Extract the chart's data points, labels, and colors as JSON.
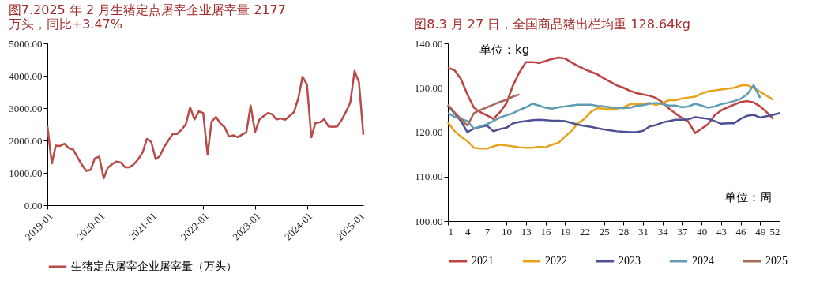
{
  "chart_data": [
    {
      "type": "line",
      "title": "图7.2025 年 2 月生猪定点屠宰企业屠宰量 2177 万头，同比+3.47%",
      "x": [
        "2019-01",
        "2019-02",
        "2019-03",
        "2019-04",
        "2019-05",
        "2019-06",
        "2019-07",
        "2019-08",
        "2019-09",
        "2019-10",
        "2019-11",
        "2019-12",
        "2020-01",
        "2020-02",
        "2020-03",
        "2020-04",
        "2020-05",
        "2020-06",
        "2020-07",
        "2020-08",
        "2020-09",
        "2020-10",
        "2020-11",
        "2020-12",
        "2021-01",
        "2021-02",
        "2021-03",
        "2021-04",
        "2021-05",
        "2021-06",
        "2021-07",
        "2021-08",
        "2021-09",
        "2021-10",
        "2021-11",
        "2021-12",
        "2022-01",
        "2022-02",
        "2022-03",
        "2022-04",
        "2022-05",
        "2022-06",
        "2022-07",
        "2022-08",
        "2022-09",
        "2022-10",
        "2022-11",
        "2022-12",
        "2023-01",
        "2023-02",
        "2023-03",
        "2023-04",
        "2023-05",
        "2023-06",
        "2023-07",
        "2023-08",
        "2023-09",
        "2023-10",
        "2023-11",
        "2023-12",
        "2024-01",
        "2024-02",
        "2024-03",
        "2024-04",
        "2024-05",
        "2024-06",
        "2024-07",
        "2024-08",
        "2024-09",
        "2024-10",
        "2024-11",
        "2024-12",
        "2025-01",
        "2025-02"
      ],
      "series": [
        {
          "name": "生猪定点屠宰企业屠宰量（万头）",
          "color": "#b94a48",
          "values": [
            2450,
            1290,
            1840,
            1830,
            1900,
            1760,
            1720,
            1480,
            1250,
            1060,
            1090,
            1450,
            1500,
            830,
            1160,
            1270,
            1350,
            1320,
            1170,
            1170,
            1270,
            1420,
            1630,
            2050,
            1950,
            1420,
            1510,
            1800,
            2000,
            2200,
            2200,
            2330,
            2500,
            3020,
            2650,
            2900,
            2850,
            1560,
            2580,
            2730,
            2530,
            2410,
            2120,
            2160,
            2100,
            2180,
            2260,
            3080,
            2260,
            2650,
            2750,
            2850,
            2810,
            2650,
            2680,
            2640,
            2760,
            2870,
            3300,
            3970,
            3730,
            2100,
            2540,
            2560,
            2660,
            2430,
            2420,
            2430,
            2630,
            2880,
            3170,
            4150,
            3800,
            2177
          ]
        }
      ],
      "xlim": [
        "2019-01",
        "2025-02"
      ],
      "xticks": [
        "2019-01",
        "2020-01",
        "2021-01",
        "2022-01",
        "2023-01",
        "2024-01",
        "2025-01"
      ],
      "ylim": [
        0,
        5000
      ],
      "yticks": [
        {
          "value": 0,
          "label": "0.00"
        },
        {
          "value": 1000,
          "label": "1000.00"
        },
        {
          "value": 2000,
          "label": "2000.00"
        },
        {
          "value": 3000,
          "label": "3000.00"
        },
        {
          "value": 4000,
          "label": "4000.00"
        },
        {
          "value": 5000,
          "label": "5000.00"
        }
      ],
      "legend": "bottom",
      "grid": false,
      "marker": "none",
      "line_style": "solid"
    },
    {
      "type": "line",
      "title": "图8.3 月 27 日，全国商品猪出栏均重 128.64kg",
      "annotations": [
        "单位：kg",
        "单位：周"
      ],
      "series": [
        {
          "name": "2021",
          "color": "#c0413f",
          "x": [
            1,
            2,
            3,
            4,
            5,
            6,
            7,
            8,
            9,
            10,
            11,
            12,
            13,
            14,
            15,
            16,
            17,
            18,
            19,
            20,
            21,
            22,
            23,
            24,
            25,
            26,
            27,
            28,
            29,
            30,
            31,
            32,
            33,
            34,
            35,
            36,
            37,
            38,
            39,
            40,
            41,
            42,
            43,
            44,
            45,
            46,
            47,
            48,
            49,
            50,
            51
          ],
          "values": [
            134.5,
            134,
            132,
            128.5,
            125.5,
            124.5,
            123.8,
            123,
            124.5,
            126.5,
            130.5,
            133.5,
            135.8,
            135.8,
            135.6,
            136,
            136.5,
            136.8,
            136.6,
            135.7,
            134.9,
            134.2,
            133.6,
            133,
            132.1,
            131.3,
            130.5,
            130,
            129.3,
            128.8,
            128.5,
            128.2,
            127.7,
            126.7,
            125.3,
            124.2,
            123.2,
            122.3,
            119.8,
            120.8,
            121.8,
            123.8,
            124.9,
            125.6,
            126.2,
            126.8,
            127,
            126.7,
            125.8,
            124.5,
            123
          ]
        },
        {
          "name": "2022",
          "color": "#e8a21c",
          "x": [
            1,
            2,
            3,
            4,
            5,
            6,
            7,
            8,
            9,
            10,
            11,
            12,
            13,
            14,
            15,
            16,
            17,
            18,
            19,
            20,
            21,
            22,
            23,
            24,
            25,
            26,
            27,
            28,
            29,
            30,
            31,
            32,
            33,
            34,
            35,
            36,
            37,
            38,
            39,
            40,
            41,
            42,
            43,
            44,
            45,
            46,
            47,
            48,
            49,
            50,
            51
          ],
          "values": [
            122.2,
            120.3,
            119,
            118,
            116.5,
            116.3,
            116.3,
            116.8,
            117.2,
            117,
            116.8,
            116.6,
            116.5,
            116.5,
            116.7,
            116.6,
            117.2,
            117.6,
            119,
            120.3,
            122,
            123,
            124.6,
            125.4,
            125.3,
            125.2,
            125.3,
            125.6,
            126.3,
            126.3,
            126.4,
            126.6,
            126.1,
            126.6,
            127.2,
            127.2,
            127.6,
            127.8,
            128,
            128.7,
            129.2,
            129.4,
            129.6,
            129.8,
            130,
            130.5,
            130.6,
            130,
            129.1,
            128.2,
            127.3
          ]
        },
        {
          "name": "2023",
          "color": "#4e4f94",
          "x": [
            1,
            2,
            3,
            4,
            5,
            6,
            7,
            8,
            9,
            10,
            11,
            12,
            13,
            14,
            15,
            16,
            17,
            18,
            19,
            20,
            21,
            22,
            23,
            24,
            25,
            26,
            27,
            28,
            29,
            30,
            31,
            32,
            33,
            34,
            35,
            36,
            37,
            38,
            39,
            40,
            41,
            42,
            43,
            44,
            45,
            46,
            47,
            48,
            49,
            50,
            51,
            52
          ],
          "values": [
            126,
            124.3,
            122.5,
            120,
            120.8,
            121.2,
            121.5,
            120.2,
            120.7,
            121,
            122,
            122.3,
            122.5,
            122.7,
            122.8,
            122.7,
            122.6,
            122.6,
            122.5,
            122.1,
            121.7,
            121.4,
            121.2,
            120.9,
            120.6,
            120.4,
            120.2,
            120.1,
            120,
            120,
            120.3,
            121.3,
            121.6,
            122.2,
            122.5,
            122.8,
            122.8,
            122.9,
            123.4,
            123.2,
            123,
            122.5,
            121.9,
            122,
            122,
            123,
            123.7,
            123.9,
            123.3,
            123.6,
            123.9,
            124.3
          ]
        },
        {
          "name": "2024",
          "color": "#5d9cb2",
          "x": [
            1,
            2,
            3,
            4,
            5,
            6,
            7,
            8,
            9,
            10,
            11,
            12,
            13,
            14,
            15,
            16,
            17,
            18,
            19,
            20,
            21,
            22,
            23,
            24,
            25,
            26,
            27,
            28,
            29,
            30,
            31,
            32,
            33,
            34,
            35,
            36,
            37,
            38,
            39,
            40,
            41,
            42,
            43,
            44,
            45,
            46,
            47,
            48,
            49
          ],
          "values": [
            124.3,
            123.5,
            123,
            122.5,
            120.8,
            121.3,
            121.8,
            122.5,
            123.3,
            123.8,
            124.3,
            125,
            125.6,
            126.4,
            126,
            125.5,
            125.3,
            125.6,
            125.8,
            126,
            126.2,
            126.2,
            126.2,
            125.9,
            125.8,
            125.6,
            125.5,
            125.4,
            125.5,
            125.9,
            126.1,
            126.4,
            126.6,
            126.3,
            126,
            126,
            125.6,
            125.8,
            126.4,
            126,
            125.5,
            125.8,
            126.3,
            126.6,
            127,
            127.5,
            128.5,
            130.6,
            127.7
          ]
        },
        {
          "name": "2025",
          "color": "#a8695a",
          "x": [
            1,
            2,
            3,
            4,
            5,
            6,
            7,
            8,
            9,
            10,
            11,
            12
          ],
          "values": [
            126.2,
            124.5,
            123,
            121.5,
            124.3,
            125,
            125.6,
            126.2,
            126.8,
            127.3,
            128,
            128.5
          ]
        }
      ],
      "xlim": [
        1,
        52
      ],
      "xticks": [
        1,
        4,
        7,
        10,
        13,
        16,
        19,
        22,
        25,
        28,
        31,
        34,
        37,
        40,
        43,
        46,
        49,
        52
      ],
      "ylim": [
        100,
        140
      ],
      "yticks": [
        {
          "value": 100,
          "label": "100.00"
        },
        {
          "value": 110,
          "label": "110.00"
        },
        {
          "value": 120,
          "label": "120.00"
        },
        {
          "value": 130,
          "label": "130.00"
        },
        {
          "value": 140,
          "label": "140.00"
        }
      ],
      "legend": "bottom",
      "grid": false,
      "marker": "none",
      "line_style": "solid"
    }
  ]
}
